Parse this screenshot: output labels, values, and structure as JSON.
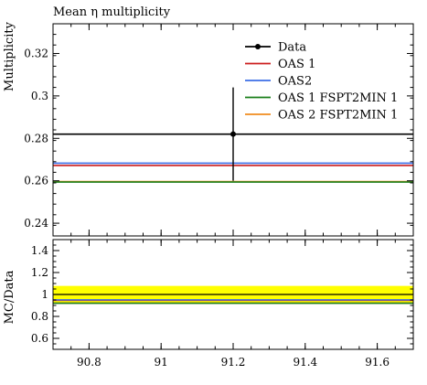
{
  "chart_data": [
    {
      "type": "line",
      "title": "Mean η multiplicity",
      "ylabel": "Multiplicity",
      "xlim": [
        90.7,
        91.7
      ],
      "ylim": [
        0.234,
        0.334
      ],
      "yticks": [
        0.24,
        0.26,
        0.28,
        0.3,
        0.32
      ],
      "ytick_labels": [
        "0.24",
        "0.26",
        "0.28",
        "0.3",
        "0.32"
      ],
      "legend_position": "top-right",
      "series": [
        {
          "name": "Data",
          "color": "#000000",
          "x": [
            91.2
          ],
          "y": [
            0.282
          ],
          "yerr": [
            0.022
          ],
          "hline": 0.282
        },
        {
          "name": "OAS 1",
          "color": "#cc1f1f",
          "hline": 0.2672
        },
        {
          "name": "OAS2",
          "color": "#3c6ee6",
          "hline": 0.2683
        },
        {
          "name": "OAS 1 FSPT2MIN 1",
          "color": "#1a7f1a",
          "hline": 0.2594
        },
        {
          "name": "OAS 2 FSPT2MIN 1",
          "color": "#f08c1e",
          "hline": 0.2596
        }
      ]
    },
    {
      "type": "line",
      "ylabel": "MC/Data",
      "xlim": [
        90.7,
        91.7
      ],
      "ylim": [
        0.5,
        1.5
      ],
      "xticks": [
        90.8,
        91,
        91.2,
        91.4,
        91.6
      ],
      "xtick_labels": [
        "90.8",
        "91",
        "91.2",
        "91.4",
        "91.6"
      ],
      "yticks": [
        0.6,
        0.8,
        1,
        1.2,
        1.4
      ],
      "ytick_labels": [
        "0.6",
        "0.8",
        "1",
        "1.2",
        "1.4"
      ],
      "band": {
        "color": "#ffff00",
        "low": 0.922,
        "high": 1.078
      },
      "series": [
        {
          "name": "Data",
          "color": "#000000",
          "hline": 1.0
        },
        {
          "name": "OAS 1",
          "color": "#cc1f1f",
          "hline": 0.947
        },
        {
          "name": "OAS2",
          "color": "#3c6ee6",
          "hline": 0.951
        },
        {
          "name": "OAS 1 FSPT2MIN 1",
          "color": "#1a7f1a",
          "hline": 0.92
        },
        {
          "name": "OAS 2 FSPT2MIN 1",
          "color": "#f08c1e",
          "hline": 0.921
        }
      ]
    }
  ]
}
